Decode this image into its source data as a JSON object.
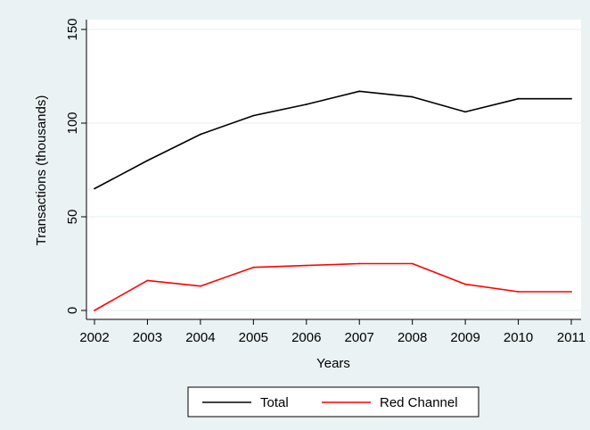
{
  "chart_data": {
    "type": "line",
    "x": [
      2002,
      2003,
      2004,
      2005,
      2006,
      2007,
      2008,
      2009,
      2010,
      2011
    ],
    "xlabel": "Years",
    "ylabel": "Transactions (thousands)",
    "xlim": [
      2002,
      2011
    ],
    "ylim": [
      0,
      150
    ],
    "yticks": [
      0,
      50,
      100,
      150
    ],
    "xticks": [
      2002,
      2003,
      2004,
      2005,
      2006,
      2007,
      2008,
      2009,
      2010,
      2011
    ],
    "grid": "horizontal",
    "legend_position": "bottom",
    "series": [
      {
        "name": "Total",
        "color": "#000000",
        "values": [
          65,
          80,
          94,
          104,
          110,
          117,
          114,
          106,
          113,
          113
        ]
      },
      {
        "name": "Red Channel",
        "color": "#ff0000",
        "values": [
          0,
          16,
          13,
          23,
          24,
          25,
          25,
          14,
          10,
          10
        ]
      }
    ]
  },
  "colors": {
    "panel_background": "#eaf2f3",
    "plot_background": "#ffffff",
    "grid": "#eaf2f3"
  }
}
